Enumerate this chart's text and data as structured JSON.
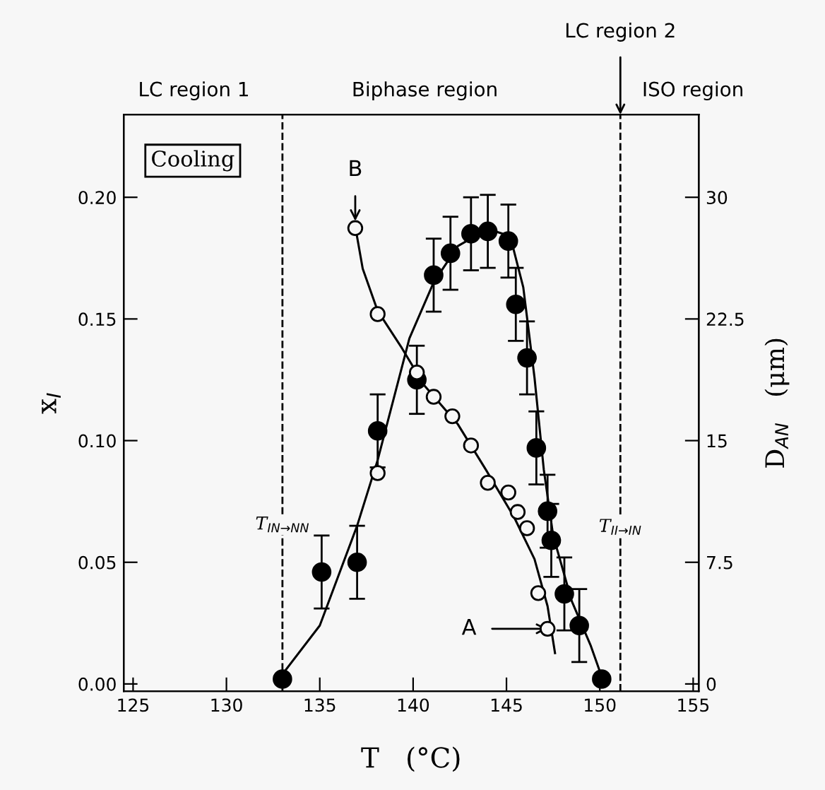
{
  "chart_data": {
    "type": "scatter",
    "xlabel": "T   (°C)",
    "ylabel": "x$_{I}$",
    "y2label": "D$_{AN}$   (μm)",
    "xlim": [
      124.5,
      155.3
    ],
    "xticks": [
      125,
      130,
      135,
      140,
      145,
      150,
      155
    ],
    "ylim": [
      -0.003,
      0.234
    ],
    "yticks": [
      {
        "value": 0,
        "label": "0.00"
      },
      {
        "value": 0.05,
        "label": "0.05"
      },
      {
        "value": 0.1,
        "label": "0.10"
      },
      {
        "value": 0.15,
        "label": "0.15"
      },
      {
        "value": 0.2,
        "label": "0.20"
      }
    ],
    "y2lim": [
      -0.45,
      35.1
    ],
    "y2ticks": [
      0,
      7.5,
      15,
      22.5,
      30
    ],
    "grid": false,
    "series": [
      {
        "axis": "y",
        "color": "#000000",
        "marker": "circle",
        "x": [
          133.0,
          135.1,
          137.0,
          138.1,
          140.2,
          141.1,
          142.0,
          143.1,
          144.0,
          145.1,
          145.5,
          146.1,
          146.6,
          147.2,
          147.4,
          148.1,
          148.9,
          150.1
        ],
        "values": [
          0.002,
          0.046,
          0.05,
          0.104,
          0.125,
          0.168,
          0.177,
          0.185,
          0.186,
          0.182,
          0.156,
          0.134,
          0.097,
          0.071,
          0.059,
          0.037,
          0.024,
          0.002
        ],
        "errors": [
          null,
          0.015,
          0.015,
          0.015,
          0.014,
          0.015,
          0.015,
          0.015,
          0.015,
          0.015,
          0.015,
          0.015,
          0.015,
          0.015,
          0.015,
          0.015,
          0.015,
          null
        ]
      },
      {
        "type": "line",
        "axis": "y",
        "color": "#000000",
        "marker": "none",
        "x": [
          133.0,
          135.0,
          137.0,
          138.1,
          139.8,
          141.1,
          142.4,
          144.0,
          145.2,
          145.9,
          146.5,
          147.0,
          147.5,
          148.5,
          149.5,
          150.1
        ],
        "values": [
          0.004,
          0.024,
          0.065,
          0.092,
          0.142,
          0.165,
          0.18,
          0.187,
          0.184,
          0.163,
          0.126,
          0.088,
          0.061,
          0.034,
          0.016,
          0.003
        ]
      },
      {
        "axis": "y2",
        "color": "#f7f7f7",
        "marker": "circle",
        "x": [
          136.9,
          138.1,
          138.1,
          140.2,
          141.1,
          142.1,
          143.1,
          144.0,
          145.1,
          145.6,
          146.1,
          146.7,
          147.2
        ],
        "values": [
          28.1,
          22.8,
          13.0,
          19.2,
          17.7,
          16.5,
          14.7,
          12.4,
          11.8,
          10.6,
          9.6,
          5.6,
          3.4
        ]
      },
      {
        "type": "line",
        "axis": "y2",
        "color": "#000000",
        "marker": "none",
        "x": [
          136.9,
          137.3,
          138.1,
          139.4,
          140.6,
          142.4,
          143.9,
          145.4,
          146.5,
          147.2,
          147.6
        ],
        "values": [
          28.2,
          25.6,
          23.0,
          20.7,
          18.4,
          16.0,
          13.2,
          10.3,
          7.7,
          4.8,
          1.9
        ]
      }
    ],
    "ref_lines": [
      {
        "axis": "x",
        "value": 133.0,
        "line_style": "dashed",
        "color": "#000000"
      },
      {
        "axis": "x",
        "value": 151.1,
        "line_style": "dashed",
        "color": "#000000"
      }
    ],
    "annotations": [
      "LC region 1",
      "Biphase region",
      "ISO region",
      {
        "text": "LC region 2",
        "x": 151.1,
        "y": 0.234
      },
      "Cooling",
      {
        "text": "B",
        "x": 136.9,
        "y": 0.187
      },
      "A",
      {
        "text": "T$_{IN→NN}$",
        "x": 133.0,
        "y": 0.062
      },
      {
        "text": "T$_{II→IN}$",
        "x": 151.1,
        "y": 0.061
      }
    ]
  }
}
